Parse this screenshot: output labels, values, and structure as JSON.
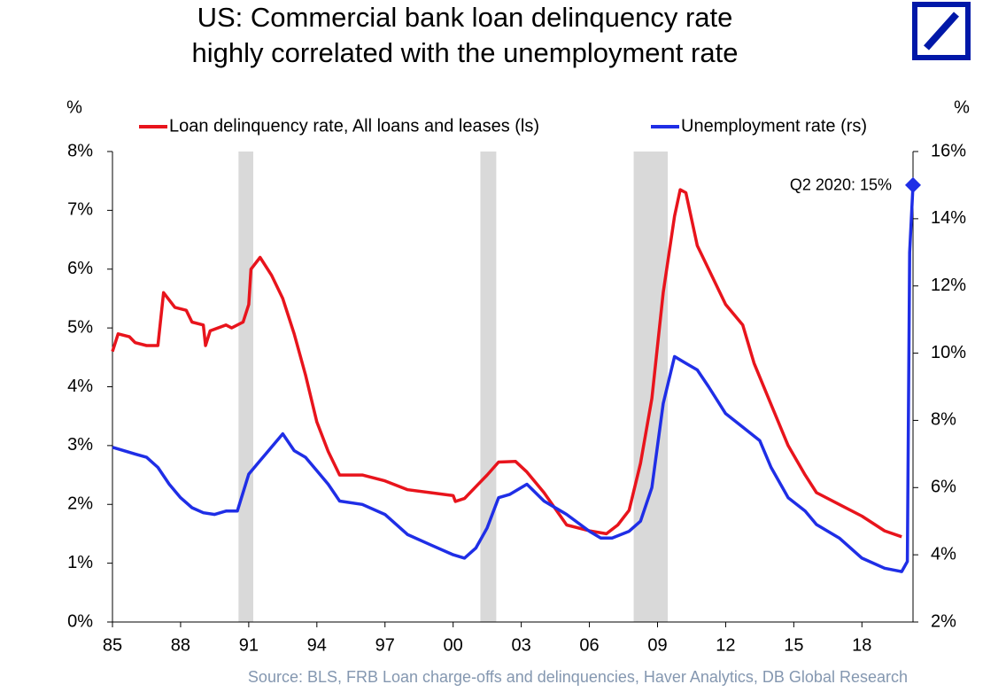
{
  "chart_data": {
    "type": "line",
    "title": [
      "US: Commercial bank loan delinquency rate",
      "highly correlated with the unemployment rate"
    ],
    "y_label": "%",
    "y2_label": "%",
    "source": "Source: BLS, FRB Loan charge-offs and delinquencies, Haver Analytics, DB Global  Research",
    "annotation": "Q2 2020: 15%",
    "xlim": [
      1985,
      2020.25
    ],
    "xticks": [
      {
        "value": 1985,
        "label": "85"
      },
      {
        "value": 1988,
        "label": "88"
      },
      {
        "value": 1991,
        "label": "91"
      },
      {
        "value": 1994,
        "label": "94"
      },
      {
        "value": 1997,
        "label": "97"
      },
      {
        "value": 2000,
        "label": "00"
      },
      {
        "value": 2003,
        "label": "03"
      },
      {
        "value": 2006,
        "label": "06"
      },
      {
        "value": 2009,
        "label": "09"
      },
      {
        "value": 2012,
        "label": "12"
      },
      {
        "value": 2015,
        "label": "15"
      },
      {
        "value": 2018,
        "label": "18"
      }
    ],
    "ylim": [
      0,
      8
    ],
    "yticks": [
      {
        "value": 0,
        "label": "0%"
      },
      {
        "value": 1,
        "label": "1%"
      },
      {
        "value": 2,
        "label": "2%"
      },
      {
        "value": 3,
        "label": "3%"
      },
      {
        "value": 4,
        "label": "4%"
      },
      {
        "value": 5,
        "label": "5%"
      },
      {
        "value": 6,
        "label": "6%"
      },
      {
        "value": 7,
        "label": "7%"
      },
      {
        "value": 8,
        "label": "8%"
      }
    ],
    "y2lim": [
      2,
      16
    ],
    "y2ticks": [
      {
        "value": 2,
        "label": "2%"
      },
      {
        "value": 4,
        "label": "4%"
      },
      {
        "value": 6,
        "label": "6%"
      },
      {
        "value": 8,
        "label": "8%"
      },
      {
        "value": 10,
        "label": "10%"
      },
      {
        "value": 12,
        "label": "12%"
      },
      {
        "value": 14,
        "label": "14%"
      },
      {
        "value": 16,
        "label": "16%"
      }
    ],
    "shaded_periods": [
      [
        1990.55,
        1991.2
      ],
      [
        2001.2,
        2001.9
      ],
      [
        2007.95,
        2009.45
      ]
    ],
    "shade_color": "#d9d9d9",
    "series": [
      {
        "name": "Loan delinquency rate, All loans and leases (ls)",
        "color": "#e8141c",
        "axis": "y",
        "x": [
          1985,
          1985.25,
          1985.75,
          1986,
          1986.5,
          1987,
          1987.25,
          1987.75,
          1988.25,
          1988.5,
          1989,
          1989.1,
          1989.3,
          1990,
          1990.25,
          1990.75,
          1991,
          1991.1,
          1991.5,
          1992,
          1992.5,
          1993,
          1993.5,
          1994,
          1994.5,
          1995,
          1996,
          1997,
          1998,
          1999,
          2000,
          2000.1,
          2000.5,
          2001,
          2001.5,
          2002,
          2002.75,
          2003.25,
          2004,
          2005,
          2006,
          2006.75,
          2007.25,
          2007.75,
          2008.25,
          2008.75,
          2009.25,
          2009.75,
          2010,
          2010.25,
          2010.75,
          2011.25,
          2012,
          2012.75,
          2013.25,
          2014,
          2014.75,
          2015.5,
          2016,
          2017,
          2018,
          2019,
          2019.75
        ],
        "values": [
          4.6,
          4.9,
          4.85,
          4.75,
          4.7,
          4.7,
          5.6,
          5.35,
          5.3,
          5.1,
          5.05,
          4.7,
          4.95,
          5.05,
          5.0,
          5.1,
          5.4,
          6.0,
          6.2,
          5.9,
          5.5,
          4.9,
          4.2,
          3.4,
          2.9,
          2.5,
          2.5,
          2.4,
          2.25,
          2.2,
          2.15,
          2.05,
          2.1,
          2.3,
          2.5,
          2.72,
          2.73,
          2.55,
          2.2,
          1.65,
          1.55,
          1.5,
          1.65,
          1.9,
          2.7,
          3.8,
          5.6,
          6.9,
          7.35,
          7.3,
          6.4,
          6.0,
          5.4,
          5.05,
          4.4,
          3.7,
          3.0,
          2.5,
          2.2,
          2.0,
          1.8,
          1.55,
          1.45
        ]
      },
      {
        "name": "Unemployment rate (rs)",
        "color": "#1f2ee6",
        "axis": "y2",
        "x": [
          1985,
          1986,
          1986.5,
          1987,
          1987.5,
          1988,
          1988.5,
          1989,
          1989.5,
          1990,
          1990.5,
          1991,
          1991.5,
          1992,
          1992.5,
          1993,
          1993.5,
          1994,
          1994.5,
          1995,
          1996,
          1997,
          1998,
          1999,
          2000,
          2000.5,
          2001,
          2001.5,
          2002,
          2002.5,
          2003.25,
          2004,
          2005,
          2006,
          2006.5,
          2007,
          2007.75,
          2008.25,
          2008.75,
          2009.25,
          2009.75,
          2010.25,
          2010.75,
          2011.25,
          2012,
          2012.75,
          2013.5,
          2014,
          2014.75,
          2015.5,
          2016,
          2017,
          2018,
          2019,
          2019.75,
          2020,
          2020.1,
          2020.25
        ],
        "values": [
          7.2,
          7.0,
          6.9,
          6.6,
          6.1,
          5.7,
          5.4,
          5.25,
          5.2,
          5.3,
          5.3,
          6.4,
          6.8,
          7.2,
          7.6,
          7.1,
          6.9,
          6.5,
          6.1,
          5.6,
          5.5,
          5.2,
          4.6,
          4.3,
          4.0,
          3.9,
          4.2,
          4.8,
          5.7,
          5.8,
          6.1,
          5.6,
          5.2,
          4.7,
          4.5,
          4.5,
          4.7,
          5.0,
          6.0,
          8.5,
          9.9,
          9.7,
          9.5,
          9.0,
          8.2,
          7.8,
          7.4,
          6.6,
          5.7,
          5.3,
          4.9,
          4.5,
          3.9,
          3.6,
          3.5,
          3.8,
          13.0,
          15.0
        ]
      }
    ]
  }
}
